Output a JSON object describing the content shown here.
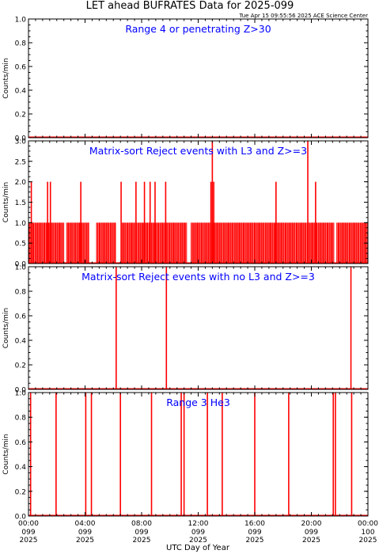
{
  "title": "LET ahead BUFRATES Data for 2025-099",
  "timestamp": "Tue Apr 15 09:55:56 2025 ACE Science Center",
  "xlabel": "UTC Day of Year",
  "colors": {
    "data": "#ff0000",
    "panel_title": "#0000ff",
    "axis": "#000000"
  },
  "x_ticks": [
    {
      "hour": 0,
      "time": "00:00",
      "doy": "099",
      "year": "2025"
    },
    {
      "hour": 4,
      "time": "04:00",
      "doy": "099",
      "year": "2025"
    },
    {
      "hour": 8,
      "time": "08:00",
      "doy": "099",
      "year": "2025"
    },
    {
      "hour": 12,
      "time": "12:00",
      "doy": "099",
      "year": "2025"
    },
    {
      "hour": 16,
      "time": "16:00",
      "doy": "099",
      "year": "2025"
    },
    {
      "hour": 20,
      "time": "20:00",
      "doy": "099",
      "year": "2025"
    },
    {
      "hour": 24,
      "time": "00:00",
      "doy": "100",
      "year": "2025"
    }
  ],
  "chart_data": [
    {
      "type": "line",
      "title": "Range 4 or  penetrating Z>30",
      "ylabel": "Counts/min",
      "ylim": [
        0,
        1.0
      ],
      "yticks": [
        "0.0",
        "0.2",
        "0.4",
        "0.6",
        "0.8",
        "1.0"
      ],
      "x_unit": "hours UTC",
      "baseline": 0,
      "spikes": []
    },
    {
      "type": "line",
      "title": "Matrix-sort Reject events with L3 and Z>=3",
      "ylabel": "Counts/min",
      "ylim": [
        0,
        3.0
      ],
      "yticks": [
        "0.0",
        "0.5",
        "1.0",
        "1.5",
        "2.0",
        "2.5",
        "3.0"
      ],
      "x_unit": "hours UTC",
      "baseline": 0,
      "dense_one_count": [
        [
          0.0,
          2.5
        ],
        [
          2.7,
          4.3
        ],
        [
          4.8,
          6.2
        ],
        [
          6.6,
          11.2
        ],
        [
          11.5,
          21.6
        ],
        [
          21.8,
          24.0
        ]
      ],
      "spikes": [
        [
          0.2,
          2
        ],
        [
          1.35,
          2
        ],
        [
          1.55,
          2
        ],
        [
          3.7,
          2
        ],
        [
          6.55,
          2
        ],
        [
          7.6,
          2
        ],
        [
          8.2,
          2
        ],
        [
          8.6,
          2
        ],
        [
          8.95,
          2
        ],
        [
          9.7,
          2
        ],
        [
          12.9,
          2
        ],
        [
          13.0,
          3
        ],
        [
          13.1,
          2
        ],
        [
          17.5,
          2
        ],
        [
          19.75,
          3
        ],
        [
          20.3,
          2
        ]
      ]
    },
    {
      "type": "line",
      "title": "Matrix-sort Reject events with no L3 and Z>=3",
      "ylabel": "Counts/min",
      "ylim": [
        0,
        1.0
      ],
      "yticks": [
        "0.0",
        "0.2",
        "0.4",
        "0.6",
        "0.8",
        "1.0"
      ],
      "x_unit": "hours UTC",
      "baseline": 0,
      "spikes": [
        [
          6.2,
          1
        ],
        [
          9.75,
          1
        ],
        [
          22.8,
          1
        ]
      ]
    },
    {
      "type": "line",
      "title": "Range 3 He3",
      "ylabel": "Counts/min",
      "ylim": [
        0,
        1.0
      ],
      "yticks": [
        "0.0",
        "0.2",
        "0.4",
        "0.6",
        "0.8",
        "1.0"
      ],
      "x_unit": "hours UTC",
      "baseline": 0,
      "spikes": [
        [
          0.15,
          1
        ],
        [
          1.95,
          1
        ],
        [
          4.05,
          1
        ],
        [
          4.45,
          1
        ],
        [
          6.5,
          1
        ],
        [
          8.7,
          1
        ],
        [
          10.8,
          1
        ],
        [
          11.0,
          1
        ],
        [
          12.65,
          1
        ],
        [
          13.7,
          1
        ],
        [
          16.0,
          1
        ],
        [
          18.4,
          1
        ],
        [
          21.55,
          1
        ],
        [
          21.7,
          1
        ],
        [
          22.85,
          1
        ]
      ]
    }
  ]
}
